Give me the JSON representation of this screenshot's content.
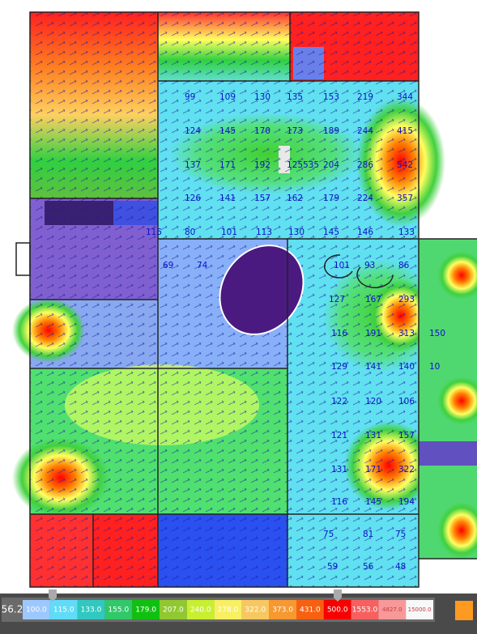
{
  "central_room": {
    "rows": [
      [
        "99",
        "109",
        "130",
        "135",
        "153",
        "219",
        "344"
      ],
      [
        "124",
        "145",
        "170",
        "173",
        "189",
        "244",
        "415"
      ],
      [
        "137",
        "171",
        "192",
        "125535",
        "204",
        "286",
        "542"
      ],
      [
        "126",
        "141",
        "157",
        "162",
        "179",
        "224",
        "357"
      ],
      [
        "115",
        "80",
        "101",
        "113",
        "130",
        "145",
        "146",
        "133"
      ]
    ]
  },
  "lower_area": {
    "labels": [
      "69",
      "74",
      "101",
      "93",
      "86",
      "127",
      "167",
      "293",
      "116",
      "191",
      "313",
      "150",
      "129",
      "141",
      "140",
      "10",
      "122",
      "120",
      "106",
      "121",
      "131",
      "157",
      "131",
      "171",
      "322",
      "116",
      "145",
      "194",
      "75",
      "81",
      "75",
      "59",
      "56",
      "48"
    ]
  },
  "legend": {
    "min": "56.2",
    "steps": [
      "100.0",
      "115.0",
      "133.0",
      "155.0",
      "179.0",
      "207.0",
      "240.0",
      "278.0",
      "322.0",
      "373.0",
      "431.0",
      "500.0",
      "1553.0",
      "4827.0",
      "15000.0"
    ]
  }
}
